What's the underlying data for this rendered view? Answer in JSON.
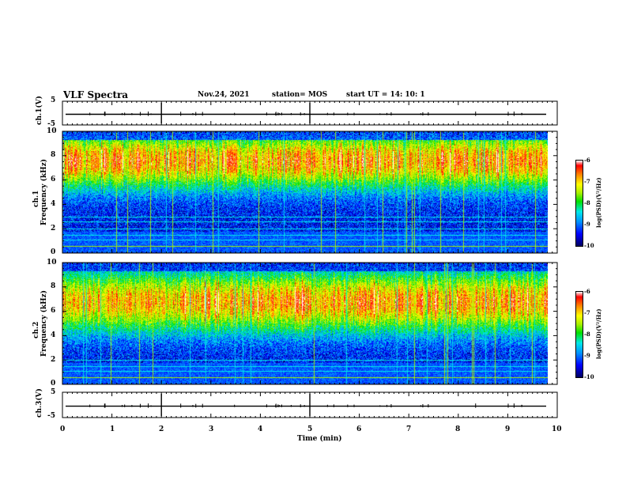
{
  "header": {
    "title": "VLF Spectra",
    "date": "Nov.24, 2021",
    "station": "station= MOS",
    "start_ut": "start  UT =   14: 10: 1"
  },
  "chart_data": [
    {
      "type": "line",
      "name": "ch1-voltage",
      "ylabel": "ch.1(V)",
      "ylim": [
        -5,
        5
      ],
      "yticks": [
        "5",
        "-5"
      ],
      "description": "near-constant trace slightly below zero with sparse small spikes",
      "baseline": -0.5
    },
    {
      "type": "heatmap",
      "name": "ch1-spectrogram",
      "ylabel": "ch.1\nFrequency (kHz)",
      "ylabel_line1": "ch.1",
      "ylabel_line2": "Frequency (kHz)",
      "ylim": [
        0,
        10
      ],
      "yticks": [
        "0",
        "2",
        "4",
        "6",
        "8",
        "10"
      ],
      "colorbar": {
        "label": "log(PSD)(V²/Hz)",
        "ticks": [
          "-6",
          "-7",
          "-8",
          "-9",
          "-10"
        ],
        "range": [
          -10,
          -6
        ]
      }
    },
    {
      "type": "heatmap",
      "name": "ch2-spectrogram",
      "ylabel": "ch.2\nFrequency (kHz)",
      "ylabel_line1": "ch.2",
      "ylabel_line2": "Frequency (kHz)",
      "ylim": [
        0,
        10
      ],
      "yticks": [
        "0",
        "2",
        "4",
        "6",
        "8",
        "10"
      ],
      "colorbar": {
        "label": "log(PSD)(V²/Hz)",
        "ticks": [
          "-6",
          "-7",
          "-8",
          "-9",
          "-10"
        ],
        "range": [
          -10,
          -6
        ]
      }
    },
    {
      "type": "line",
      "name": "ch3-voltage",
      "ylabel": "ch.3(V)",
      "ylim": [
        -5,
        5
      ],
      "yticks": [
        "5",
        "-5"
      ],
      "description": "near-constant trace slightly below zero with sparse small spikes",
      "baseline": -0.5
    }
  ],
  "xaxis": {
    "label": "Time  (min)",
    "xlim": [
      0,
      10
    ],
    "ticks": [
      "0",
      "1",
      "2",
      "3",
      "4",
      "5",
      "6",
      "7",
      "8",
      "9",
      "10"
    ]
  },
  "colors": {
    "background": "#ffffff",
    "axes": "#000000",
    "colormap": [
      "#000060",
      "#0000ff",
      "#0090ff",
      "#00e8e8",
      "#00e000",
      "#a8f000",
      "#ffff00",
      "#ff8000",
      "#ff0000",
      "#ffffff"
    ]
  }
}
